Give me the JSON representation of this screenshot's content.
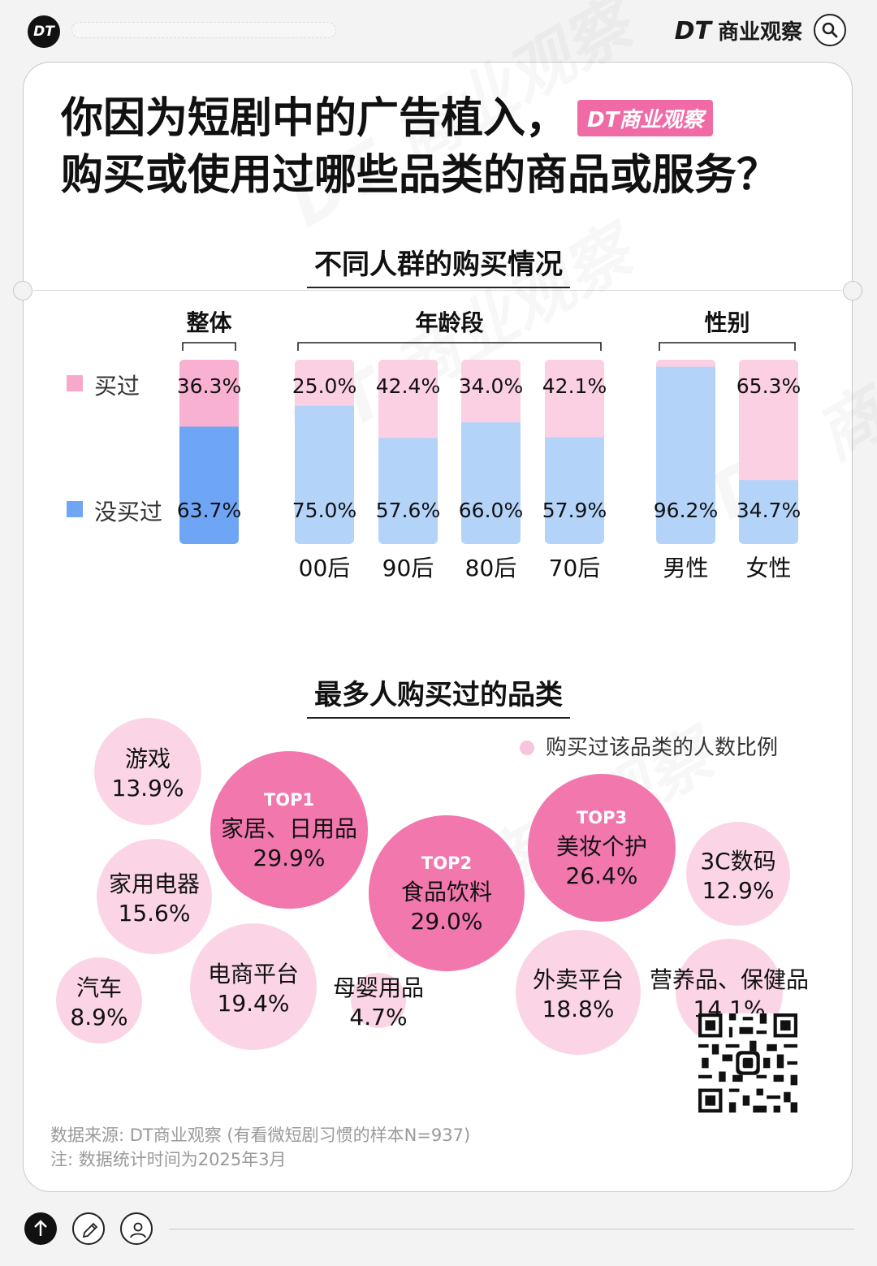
{
  "header": {
    "logo": "DT",
    "brand_dt": "DT",
    "brand_name": "商业观察",
    "search_icon": "search-icon"
  },
  "title": {
    "line1": "你因为短剧中的广告植入，",
    "line2": "购买或使用过哪些品类的商品或服务？",
    "badge": "DT商业观察"
  },
  "section1_title": "不同人群的购买情况",
  "section2_title": "最多人购买过的品类",
  "legend": {
    "bought": "买过",
    "not_bought": "没买过"
  },
  "colors": {
    "pink": "#f8b1d0",
    "pink_light": "#fbd0e3",
    "blue": "#6fa5f5",
    "blue_light": "#b4d3f9",
    "bubble_top": "#f06ba6",
    "bubble_light": "#fbd5e6"
  },
  "chart_data": [
    {
      "type": "bar",
      "stacked": true,
      "groups": [
        {
          "label": "整体",
          "categories": [
            ""
          ]
        },
        {
          "label": "年龄段",
          "categories": [
            "00后",
            "90后",
            "80后",
            "70后"
          ]
        },
        {
          "label": "性别",
          "categories": [
            "男性",
            "女性"
          ]
        }
      ],
      "series": [
        {
          "name": "买过",
          "values": [
            36.3,
            25.0,
            42.4,
            34.0,
            42.1,
            3.8,
            65.3
          ],
          "labels": [
            "36.3%",
            "25.0%",
            "42.4%",
            "34.0%",
            "42.1%",
            "",
            "65.3%"
          ]
        },
        {
          "name": "没买过",
          "values": [
            63.7,
            75.0,
            57.6,
            66.0,
            57.9,
            96.2,
            34.7
          ],
          "labels": [
            "63.7%",
            "75.0%",
            "57.6%",
            "66.0%",
            "57.9%",
            "96.2%",
            "34.7%"
          ]
        }
      ],
      "ylim": [
        0,
        100
      ]
    },
    {
      "type": "bubble",
      "legend": "购买过该品类的人数比例",
      "items": [
        {
          "name": "游戏",
          "value": 13.9,
          "label": "13.9%",
          "rank": ""
        },
        {
          "name": "家居、日用品",
          "value": 29.9,
          "label": "29.9%",
          "rank": "TOP1"
        },
        {
          "name": "家用电器",
          "value": 15.6,
          "label": "15.6%",
          "rank": ""
        },
        {
          "name": "食品饮料",
          "value": 29.0,
          "label": "29.0%",
          "rank": "TOP2"
        },
        {
          "name": "美妆个护",
          "value": 26.4,
          "label": "26.4%",
          "rank": "TOP3"
        },
        {
          "name": "3C数码",
          "value": 12.9,
          "label": "12.9%",
          "rank": ""
        },
        {
          "name": "汽车",
          "value": 8.9,
          "label": "8.9%",
          "rank": ""
        },
        {
          "name": "电商平台",
          "value": 19.4,
          "label": "19.4%",
          "rank": ""
        },
        {
          "name": "母婴用品",
          "value": 4.7,
          "label": "4.7%",
          "rank": ""
        },
        {
          "name": "外卖平台",
          "value": 18.8,
          "label": "18.8%",
          "rank": ""
        },
        {
          "name": "营养品、保健品",
          "value": 14.1,
          "label": "14.1%",
          "rank": ""
        }
      ]
    }
  ],
  "footnotes": {
    "source": "数据来源: DT商业观察 (有看微短剧习惯的样本N=937)",
    "note": "注: 数据统计时间为2025年3月"
  }
}
